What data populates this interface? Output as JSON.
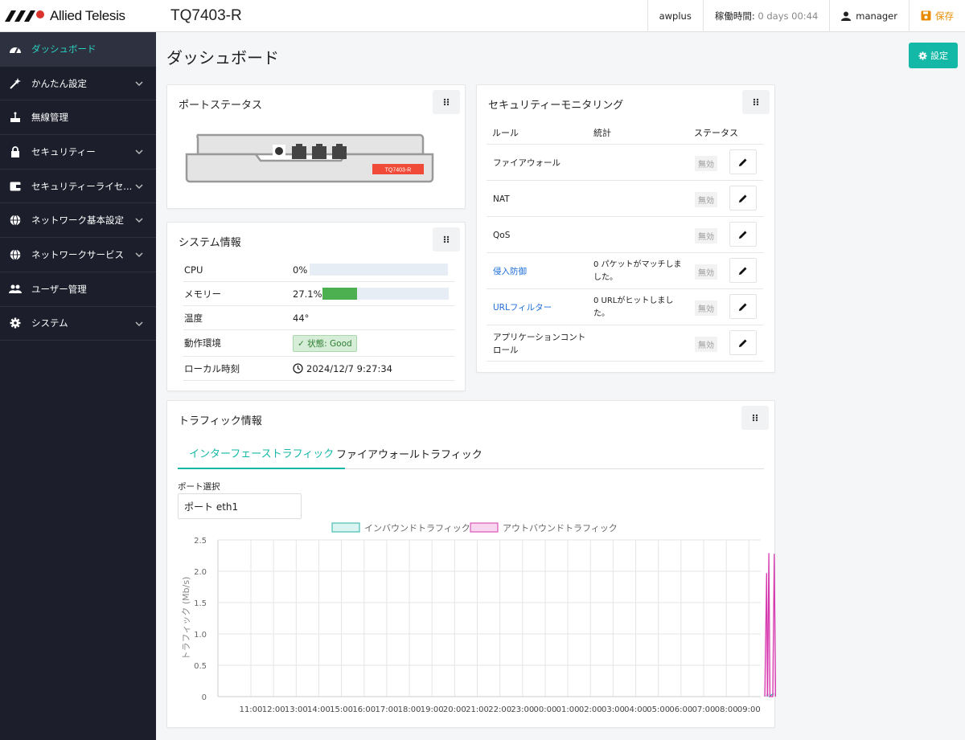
{
  "header": {
    "brand": "Allied Telesis",
    "product": "TQ7403-R",
    "hostname": "awplus",
    "uptime_label": "稼働時間:",
    "uptime_value": "0 days 00:44",
    "user": "manager",
    "save_label": "保存"
  },
  "sidebar": {
    "items": [
      {
        "label": "ダッシュボード",
        "icon": "dashboard-icon"
      },
      {
        "label": "かんたん設定",
        "icon": "wizard-icon"
      },
      {
        "label": "無線管理",
        "icon": "router-icon"
      },
      {
        "label": "セキュリティー",
        "icon": "lock-icon"
      },
      {
        "label": "セキュリティーライセ...",
        "icon": "wallet-icon"
      },
      {
        "label": "ネットワーク基本設定",
        "icon": "globe-icon"
      },
      {
        "label": "ネットワークサービス",
        "icon": "globe-icon"
      },
      {
        "label": "ユーザー管理",
        "icon": "users-icon"
      },
      {
        "label": "システム",
        "icon": "gear-icon"
      }
    ]
  },
  "page": {
    "title": "ダッシュボード",
    "settings_label": "設定"
  },
  "port_status": {
    "title": "ポートステータス",
    "device_label": "TQ7403-R"
  },
  "system_info": {
    "title": "システム情報",
    "rows": [
      {
        "key": "CPU",
        "value": "0%",
        "percent": 0
      },
      {
        "key": "メモリー",
        "value": "27.1%",
        "percent": 27.1
      },
      {
        "key": "温度",
        "value": "44°"
      },
      {
        "key": "動作環境",
        "value": "状態: Good"
      },
      {
        "key": "ローカル時刻",
        "value": "2024/12/7 9:27:34"
      }
    ]
  },
  "security": {
    "title": "セキュリティーモニタリング",
    "columns": [
      "ルール",
      "統計",
      "ステータス"
    ],
    "rows": [
      {
        "name": "ファイアウォール",
        "stat": "",
        "status": "無効",
        "link": false
      },
      {
        "name": "NAT",
        "stat": "",
        "status": "無効",
        "link": false
      },
      {
        "name": "QoS",
        "stat": "",
        "status": "無効",
        "link": false
      },
      {
        "name": "侵入防御",
        "stat": "0 パケットがマッチしました。",
        "status": "無効",
        "link": true
      },
      {
        "name": "URLフィルター",
        "stat": "0 URLがヒットしました。",
        "status": "無効",
        "link": true
      },
      {
        "name": "アプリケーションコントロール",
        "stat": "",
        "status": "無効",
        "link": false
      }
    ]
  },
  "traffic": {
    "title": "トラフィック情報",
    "tabs": [
      "インターフェーストラフィック",
      "ファイアウォールトラフィック"
    ],
    "port_label": "ポート選択",
    "port_value": "ポート eth1"
  },
  "chart_data": {
    "type": "line",
    "ylabel": "トラフィック (Mb/s)",
    "ylim": [
      0,
      2.5
    ],
    "yticks": [
      "0",
      "0.5",
      "1.0",
      "1.5",
      "2.0",
      "2.5"
    ],
    "categories": [
      "11:00",
      "12:00",
      "13:00",
      "14:00",
      "15:00",
      "16:00",
      "17:00",
      "18:00",
      "19:00",
      "20:00",
      "21:00",
      "22:00",
      "23:00",
      "00:00",
      "01:00",
      "02:00",
      "03:00",
      "04:00",
      "05:00",
      "06:00",
      "07:00",
      "08:00",
      "09:00"
    ],
    "series": [
      {
        "name": "インバウンドトラフィック",
        "color": "#2ab3a3",
        "fill": "#d9f4f1",
        "points": [
          [
            22.75,
            0
          ],
          [
            22.82,
            0.05
          ],
          [
            22.9,
            0
          ],
          [
            23.0,
            0.03
          ],
          [
            23.1,
            0.05
          ],
          [
            23.2,
            0
          ]
        ]
      },
      {
        "name": "アウトバウンドトラフィック",
        "color": "#d63aaf",
        "fill": "#f8d6ef",
        "points": [
          [
            22.7,
            0
          ],
          [
            22.78,
            1.97
          ],
          [
            22.82,
            0
          ],
          [
            22.88,
            2.29
          ],
          [
            22.93,
            0
          ],
          [
            23.05,
            0
          ],
          [
            23.12,
            2.28
          ],
          [
            23.18,
            0
          ]
        ]
      }
    ]
  }
}
